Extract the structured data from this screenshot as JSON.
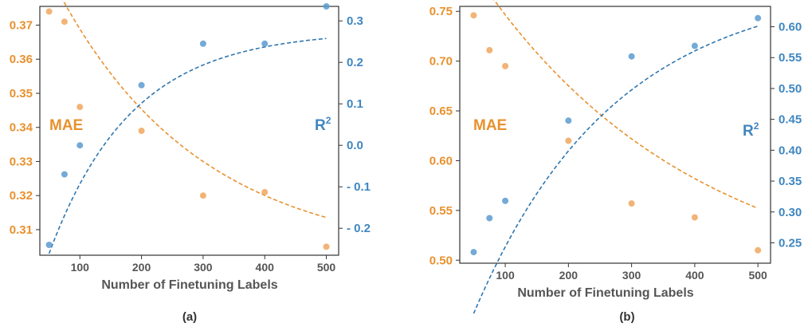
{
  "chart_data": [
    {
      "type": "scatter",
      "panel_label": "(a)",
      "xlabel": "Number of Finetuning Labels",
      "xlim": [
        35,
        520
      ],
      "xticks": [
        100,
        200,
        300,
        400,
        500
      ],
      "left_axis": {
        "label": "MAE",
        "color": "#e8912e",
        "ylim": [
          0.3025,
          0.3755
        ],
        "ticks": [
          0.31,
          0.32,
          0.33,
          0.34,
          0.35,
          0.36,
          0.37
        ]
      },
      "right_axis": {
        "label": "R",
        "label_sup": "2",
        "color": "#3f86c0",
        "ylim": [
          -0.265,
          0.335
        ],
        "ticks": [
          -0.2,
          -0.1,
          0.0,
          0.1,
          0.2,
          0.3
        ],
        "tick_labels": [
          "- 0.2",
          "- 0.1",
          "0.0",
          "0.1",
          "0.2",
          "0.3"
        ]
      },
      "series": [
        {
          "name": "MAE",
          "axis": "left",
          "color": "#f0a75e",
          "points": [
            [
              50,
              0.374
            ],
            [
              75,
              0.371
            ],
            [
              100,
              0.346
            ],
            [
              200,
              0.339
            ],
            [
              300,
              0.32
            ],
            [
              400,
              0.321
            ],
            [
              500,
              0.305
            ]
          ],
          "fit": {
            "asymptote": 0.3015,
            "amplitude": 0.0835,
            "rate": 0.0043
          }
        },
        {
          "name": "R2",
          "axis": "right",
          "color": "#5a9bd0",
          "points": [
            [
              50,
              -0.24
            ],
            [
              75,
              -0.07
            ],
            [
              100,
              0.0
            ],
            [
              200,
              0.145
            ],
            [
              300,
              0.245
            ],
            [
              400,
              0.245
            ],
            [
              500,
              0.335
            ]
          ],
          "fit": {
            "asymptote": 0.276,
            "amplitude": -0.537,
            "rate": 0.0075
          }
        }
      ]
    },
    {
      "type": "scatter",
      "panel_label": "(b)",
      "xlabel": "Number of Finetuning Labels",
      "xlim": [
        28,
        520
      ],
      "xticks": [
        100,
        200,
        300,
        400,
        500
      ],
      "left_axis": {
        "label": "MAE",
        "color": "#e8912e",
        "ylim": [
          0.497,
          0.755
        ],
        "ticks": [
          0.5,
          0.55,
          0.6,
          0.65,
          0.7,
          0.75
        ],
        "tick_labels": [
          "0.50",
          "0.55",
          "0.60",
          "0.65",
          "0.70",
          "0.75"
        ]
      },
      "right_axis": {
        "label": "R",
        "label_sup": "2",
        "color": "#3f86c0",
        "ylim": [
          0.217,
          0.633
        ],
        "ticks": [
          0.25,
          0.3,
          0.35,
          0.4,
          0.45,
          0.5,
          0.55,
          0.6
        ],
        "tick_labels": [
          "0.25",
          "0.30",
          "0.35",
          "0.40",
          "0.45",
          "0.50",
          "0.55",
          "0.60"
        ]
      },
      "series": [
        {
          "name": "MAE",
          "axis": "left",
          "color": "#f0a75e",
          "points": [
            [
              50,
              0.746
            ],
            [
              75,
              0.711
            ],
            [
              100,
              0.695
            ],
            [
              200,
              0.62
            ],
            [
              300,
              0.557
            ],
            [
              400,
              0.543
            ],
            [
              500,
              0.51
            ]
          ],
          "fit": {
            "asymptote": 0.4634,
            "amplitude": 0.3273,
            "rate": 0.0029
          }
        },
        {
          "name": "R2",
          "axis": "right",
          "color": "#5a9bd0",
          "points": [
            [
              50,
              0.235
            ],
            [
              75,
              0.29
            ],
            [
              100,
              0.318
            ],
            [
              200,
              0.448
            ],
            [
              300,
              0.552
            ],
            [
              400,
              0.569
            ],
            [
              500,
              0.614
            ]
          ],
          "fit": {
            "asymptote": 0.6718,
            "amplitude": -0.5363,
            "rate": 0.0045
          }
        }
      ]
    }
  ]
}
